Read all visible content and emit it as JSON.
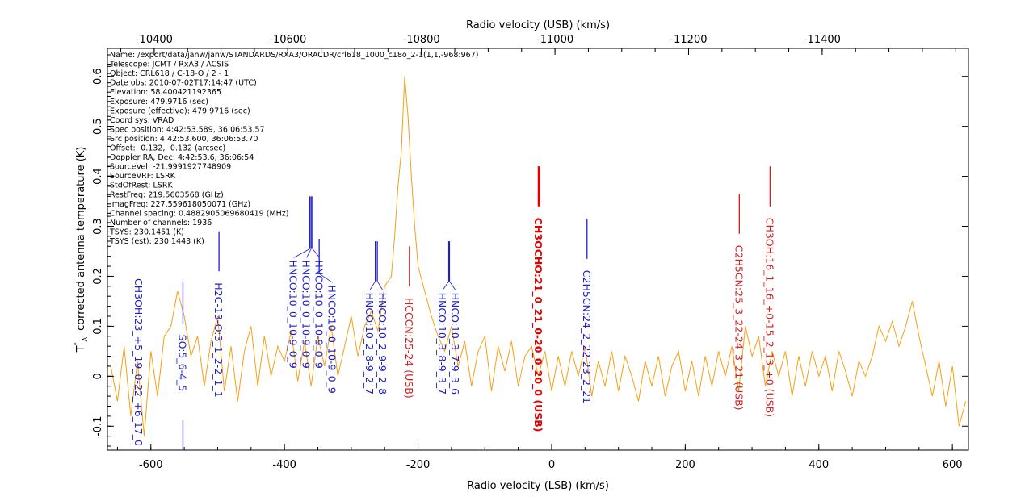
{
  "chart_data": {
    "type": "line",
    "xlabel": "Radio velocity (LSB) (km/s)",
    "x2label": "Radio velocity (USB) (km/s)",
    "ylabel_symbol": "T",
    "ylabel_sup": "*",
    "ylabel_sub": "A",
    "ylabel": "corrected antenna temperature (K)",
    "xlim": [
      -665,
      624
    ],
    "ylim": [
      -0.148,
      0.656
    ],
    "x2_offset": -10995,
    "xticks": [
      "-600",
      "-400",
      "-200",
      "0",
      "200",
      "400",
      "600"
    ],
    "x2ticks": [
      "-10400",
      "-10600",
      "-10800",
      "-11000",
      "-11200",
      "-11400"
    ],
    "yticks": [
      "-0.1",
      "0",
      "0.1",
      "0.2",
      "0.3",
      "0.4",
      "0.5",
      "0.6"
    ],
    "grid": false,
    "series_color": "#f5a012",
    "series": [
      {
        "x": [
          -660,
          -650,
          -640,
          -630,
          -620,
          -610,
          -600,
          -590,
          -580,
          -570,
          -560,
          -550,
          -540,
          -530,
          -520,
          -510,
          -500,
          -490,
          -480,
          -470,
          -460,
          -450,
          -440,
          -430,
          -420,
          -410,
          -400,
          -390,
          -380,
          -370,
          -360,
          -350,
          -340,
          -330,
          -320,
          -310,
          -300,
          -290,
          -280,
          -270,
          -260,
          -250,
          -240,
          -235,
          -230,
          -225,
          -220,
          -215,
          -210,
          -205,
          -200,
          -190,
          -180,
          -170,
          -160,
          -150,
          -140,
          -130,
          -120,
          -110,
          -100,
          -90,
          -80,
          -70,
          -60,
          -50,
          -40,
          -30,
          -20,
          -10,
          0,
          10,
          20,
          30,
          40,
          50,
          60,
          70,
          80,
          90,
          100,
          110,
          120,
          130,
          140,
          150,
          160,
          170,
          180,
          190,
          200,
          210,
          220,
          230,
          240,
          250,
          260,
          270,
          280,
          290,
          300,
          310,
          320,
          330,
          340,
          350,
          360,
          370,
          380,
          390,
          400,
          410,
          420,
          430,
          440,
          450,
          460,
          470,
          480,
          490,
          500,
          510,
          520,
          530,
          540,
          550,
          560,
          570,
          580,
          590,
          600,
          610,
          620
        ],
        "y": [
          0.02,
          -0.05,
          0.06,
          -0.08,
          0.03,
          -0.12,
          0.05,
          -0.04,
          0.08,
          0.1,
          0.17,
          0.12,
          0.04,
          0.08,
          -0.02,
          0.07,
          0.12,
          -0.03,
          0.06,
          -0.05,
          0.05,
          0.1,
          -0.02,
          0.08,
          0.0,
          0.06,
          0.03,
          0.09,
          -0.01,
          0.07,
          -0.02,
          0.08,
          0.02,
          0.1,
          0.0,
          0.06,
          0.12,
          0.04,
          0.1,
          0.13,
          0.09,
          0.18,
          0.2,
          0.28,
          0.38,
          0.45,
          0.6,
          0.52,
          0.4,
          0.3,
          0.22,
          0.17,
          0.12,
          0.08,
          0.05,
          0.1,
          0.02,
          0.07,
          -0.02,
          0.05,
          0.08,
          -0.03,
          0.06,
          0.01,
          0.07,
          -0.02,
          0.04,
          0.06,
          0.0,
          0.05,
          -0.03,
          0.04,
          -0.02,
          0.05,
          0.0,
          0.06,
          -0.04,
          0.03,
          -0.02,
          0.05,
          -0.03,
          0.04,
          0.0,
          -0.05,
          0.03,
          -0.02,
          0.04,
          -0.04,
          0.02,
          0.05,
          -0.03,
          0.03,
          -0.04,
          0.04,
          -0.02,
          0.05,
          0.0,
          0.06,
          -0.03,
          0.1,
          0.04,
          0.08,
          -0.02,
          0.05,
          0.0,
          0.05,
          -0.04,
          0.04,
          -0.02,
          0.05,
          0.0,
          0.04,
          -0.03,
          0.05,
          0.01,
          -0.04,
          0.03,
          0.0,
          0.04,
          0.1,
          0.07,
          0.11,
          0.06,
          0.1,
          0.15,
          0.08,
          0.02,
          -0.04,
          0.03,
          -0.06,
          0.02,
          -0.1,
          -0.05
        ]
      }
    ],
    "line_ids": [
      {
        "v": -618,
        "color": "#2020c8",
        "tick": null,
        "label": "CH3OH:23_+5_19_0-22_+6_17_0"
      },
      {
        "v": -552,
        "color": "#2020c8",
        "tick": [
          0.106,
          0.19
        ],
        "label": "SO:5_6-4_5"
      },
      {
        "v": -498,
        "color": "#2020c8",
        "tick": [
          0.21,
          0.29
        ],
        "label": "H2C-13-O:3_1_2-2_1_1"
      },
      {
        "v": -362,
        "color": "#2020c8",
        "tick": [
          0.255,
          0.36
        ],
        "label": "HNCO:10_0_10-9_0_9"
      },
      {
        "v": -360,
        "color": "#2020c8",
        "tick": [
          0.255,
          0.36
        ],
        "label": "HNCO:10_0_10-9_0_9"
      },
      {
        "v": -358,
        "color": "#2020c8",
        "tick": [
          0.255,
          0.36
        ],
        "label": "HNCO:10_0_10-9_0_9"
      },
      {
        "v": -348,
        "color": "#2020c8",
        "tick": [
          0.205,
          0.275
        ],
        "label": "HNCO:10_0_10-9_0_9"
      },
      {
        "v": -264,
        "color": "#2020c8",
        "tick": [
          0.19,
          0.27
        ],
        "label": "HNCO:10_2_8-9_2_7"
      },
      {
        "v": -261,
        "color": "#2020c8",
        "tick": [
          0.19,
          0.27
        ],
        "label": "HNCO:10_2_9-9_2_8"
      },
      {
        "v": -213,
        "color": "#d02020",
        "tick": [
          0.18,
          0.26
        ],
        "label": "HCCCN:25-24 (USB)"
      },
      {
        "v": -154,
        "color": "#2020c8",
        "tick": [
          0.19,
          0.27
        ],
        "label": "HNCO:10_3_8-9_3_7"
      },
      {
        "v": -153,
        "color": "#2020c8",
        "tick": [
          0.19,
          0.27
        ],
        "label": "HNCO:10_3_7-9_3_6"
      },
      {
        "v": -19,
        "color": "#e00000",
        "tick": [
          0.34,
          0.42
        ],
        "label": "CH3OCHO:21_0_21_0-20_0_20_0 (USB)",
        "bold": true
      },
      {
        "v": 53,
        "color": "#2020c8",
        "tick": [
          0.235,
          0.315
        ],
        "label": "C2H5CN:24_2_22-23_2_21"
      },
      {
        "v": 281,
        "color": "#d02020",
        "tick": [
          0.285,
          0.365
        ],
        "label": "C2H5CN:25_3_22-24_3_21 (USB)"
      },
      {
        "v": 327,
        "color": "#d02020",
        "tick": [
          0.34,
          0.42
        ],
        "label": "CH3OH:16_1_16_+0-15_2_13_+0 (USB)"
      }
    ]
  },
  "metadata": [
    "Name: /export/data/janw/janw/STANDARDS/RXA3/ORACDR/crl618_1000_c18o_2-1(1,1,-968:967)",
    "Telescope: JCMT / RxA3 / ACSIS",
    "Object: CRL618 / C-18-O / 2  - 1",
    "Date obs: 2010-07-02T17:14:47 (UTC)",
    "Elevation: 58.400421192365",
    "Exposure: 479.9716 (sec)",
    "Exposure (effective): 479.9716 (sec)",
    "Coord sys: VRAD",
    "Spec position: 4:42:53.589, 36:06:53.57",
    "Src position: 4:42:53.600, 36:06:53.70",
    "Offset: -0.132, -0.132 (arcsec)",
    "Doppler RA, Dec: 4:42:53.6, 36:06:54",
    "SourceVel: -21.9991927748909",
    "SourceVRF: LSRK",
    "StdOfRest: LSRK",
    "RestFreq: 219.5603568 (GHz)",
    "ImagFreq: 227.559618050071 (GHz)",
    "Channel spacing: 0.4882905069680419 (MHz)",
    "Number of channels: 1936",
    "TSYS: 230.1451 (K)",
    "TSYS (est): 230.1443 (K)"
  ]
}
